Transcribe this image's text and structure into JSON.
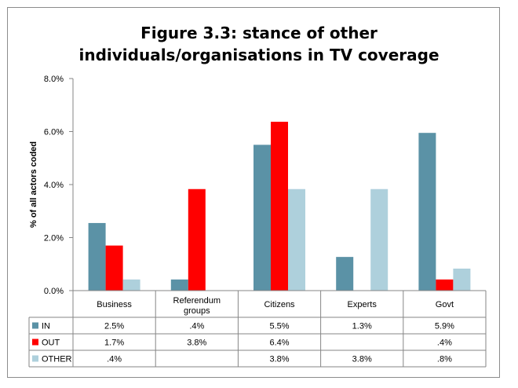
{
  "chart_data": {
    "type": "bar",
    "title": "Figure 3.3: stance of other individuals/organisations in TV coverage",
    "title_lines": [
      "Figure 3.3: stance of other",
      "individuals/organisations in TV coverage"
    ],
    "ylabel": "% of all actors coded",
    "xlabel": "",
    "ylim": [
      0,
      8
    ],
    "yticks": [
      0,
      2,
      4,
      6,
      8
    ],
    "ytick_labels": [
      "0.0%",
      "2.0%",
      "4.0%",
      "6.0%",
      "8.0%"
    ],
    "categories": [
      "Business",
      "Referendum groups",
      "Citizens",
      "Experts",
      "Govt"
    ],
    "category_lines": [
      [
        "Business"
      ],
      [
        "Referendum",
        "groups"
      ],
      [
        "Citizens"
      ],
      [
        "Experts"
      ],
      [
        "Govt"
      ]
    ],
    "series": [
      {
        "name": "IN",
        "color": "#5b92a6",
        "values": [
          2.55,
          0.42,
          5.5,
          1.27,
          5.95
        ],
        "labels": [
          "2.5%",
          ".4%",
          "5.5%",
          "1.3%",
          "5.9%"
        ]
      },
      {
        "name": "OUT",
        "color": "#ff0000",
        "values": [
          1.7,
          3.83,
          6.37,
          null,
          0.42
        ],
        "labels": [
          "1.7%",
          "3.8%",
          "6.4%",
          "",
          ".4%"
        ]
      },
      {
        "name": "OTHER",
        "color": "#aed0dc",
        "values": [
          0.42,
          null,
          3.83,
          3.83,
          0.83
        ],
        "labels": [
          ".4%",
          "",
          "3.8%",
          "3.8%",
          ".8%"
        ]
      }
    ],
    "grid": false,
    "legend": "data-table"
  }
}
